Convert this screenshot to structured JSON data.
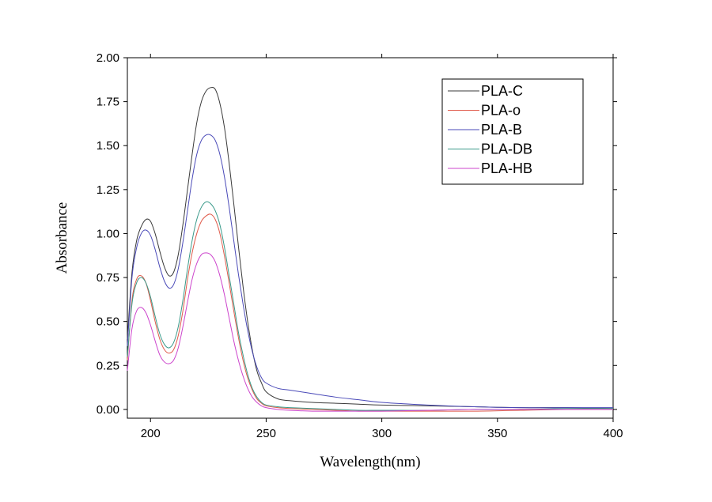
{
  "chart_data": {
    "type": "line",
    "xlabel": "Wavelength(nm)",
    "ylabel": "Absorbance",
    "xlim": [
      190,
      400
    ],
    "ylim": [
      -0.05,
      2.0
    ],
    "xticks": [
      200,
      250,
      300,
      350,
      400
    ],
    "xtick_labels": [
      "200",
      "250",
      "300",
      "350",
      "400"
    ],
    "yticks": [
      0.0,
      0.25,
      0.5,
      0.75,
      1.0,
      1.25,
      1.5,
      1.75,
      2.0
    ],
    "ytick_labels": [
      "0.00",
      "0.25",
      "0.50",
      "0.75",
      "1.00",
      "1.25",
      "1.50",
      "1.75",
      "2.00"
    ],
    "grid": false,
    "legend_position": "top-right",
    "series": [
      {
        "name": "PLA-C",
        "color": "#3a3a3a",
        "x": [
          190,
          192,
          194,
          196,
          198,
          200,
          202,
          204,
          206,
          208,
          210,
          212,
          214,
          216,
          218,
          220,
          222,
          224,
          226,
          228,
          230,
          232,
          234,
          236,
          238,
          240,
          242,
          244,
          246,
          248,
          250,
          255,
          260,
          270,
          280,
          290,
          300,
          320,
          340,
          360,
          380,
          400
        ],
        "y": [
          0.4,
          0.78,
          0.96,
          1.04,
          1.08,
          1.07,
          1.0,
          0.9,
          0.81,
          0.76,
          0.78,
          0.88,
          1.05,
          1.25,
          1.45,
          1.63,
          1.75,
          1.81,
          1.83,
          1.82,
          1.74,
          1.6,
          1.4,
          1.17,
          0.93,
          0.7,
          0.5,
          0.34,
          0.22,
          0.15,
          0.1,
          0.06,
          0.05,
          0.04,
          0.035,
          0.03,
          0.025,
          0.02,
          0.015,
          0.01,
          0.01,
          0.005
        ]
      },
      {
        "name": "PLA-o",
        "color": "#e05a4a",
        "x": [
          190,
          192,
          194,
          196,
          198,
          200,
          202,
          204,
          206,
          208,
          210,
          212,
          214,
          216,
          218,
          220,
          222,
          224,
          226,
          228,
          230,
          232,
          234,
          236,
          238,
          240,
          242,
          244,
          246,
          248,
          250,
          255,
          260,
          270,
          280,
          290,
          300,
          320,
          340,
          360,
          380,
          400
        ],
        "y": [
          0.28,
          0.62,
          0.74,
          0.76,
          0.72,
          0.62,
          0.5,
          0.4,
          0.34,
          0.32,
          0.34,
          0.42,
          0.56,
          0.74,
          0.89,
          1.0,
          1.07,
          1.1,
          1.11,
          1.08,
          1.0,
          0.87,
          0.72,
          0.56,
          0.41,
          0.28,
          0.18,
          0.11,
          0.06,
          0.035,
          0.02,
          0.01,
          0.005,
          0.0,
          -0.005,
          -0.01,
          -0.01,
          -0.01,
          -0.01,
          -0.005,
          0.0,
          0.0
        ]
      },
      {
        "name": "PLA-B",
        "color": "#4a4ab8",
        "x": [
          190,
          192,
          194,
          196,
          198,
          200,
          202,
          204,
          206,
          208,
          210,
          212,
          214,
          216,
          218,
          220,
          222,
          224,
          226,
          228,
          230,
          232,
          234,
          236,
          238,
          240,
          242,
          244,
          246,
          248,
          250,
          255,
          260,
          270,
          280,
          290,
          300,
          320,
          340,
          360,
          380,
          400
        ],
        "y": [
          0.36,
          0.75,
          0.92,
          1.0,
          1.02,
          0.99,
          0.91,
          0.81,
          0.73,
          0.69,
          0.71,
          0.8,
          0.95,
          1.13,
          1.31,
          1.45,
          1.53,
          1.56,
          1.56,
          1.53,
          1.45,
          1.32,
          1.15,
          0.96,
          0.77,
          0.6,
          0.45,
          0.33,
          0.24,
          0.18,
          0.15,
          0.12,
          0.11,
          0.09,
          0.07,
          0.055,
          0.04,
          0.025,
          0.015,
          0.01,
          0.01,
          0.01
        ]
      },
      {
        "name": "PLA-DB",
        "color": "#3a9a8a",
        "x": [
          190,
          192,
          194,
          196,
          198,
          200,
          202,
          204,
          206,
          208,
          210,
          212,
          214,
          216,
          218,
          220,
          222,
          224,
          226,
          228,
          230,
          232,
          234,
          236,
          238,
          240,
          242,
          244,
          246,
          248,
          250,
          255,
          260,
          270,
          280,
          290,
          300,
          320,
          340,
          360,
          380,
          400
        ],
        "y": [
          0.3,
          0.6,
          0.72,
          0.75,
          0.72,
          0.64,
          0.53,
          0.43,
          0.37,
          0.35,
          0.38,
          0.47,
          0.62,
          0.8,
          0.96,
          1.08,
          1.15,
          1.18,
          1.17,
          1.13,
          1.05,
          0.92,
          0.76,
          0.6,
          0.44,
          0.31,
          0.2,
          0.12,
          0.07,
          0.04,
          0.025,
          0.015,
          0.01,
          0.005,
          0.0,
          -0.005,
          -0.005,
          -0.005,
          0.0,
          0.0,
          0.005,
          0.005
        ]
      },
      {
        "name": "PLA-HB",
        "color": "#cc44cc",
        "x": [
          190,
          192,
          194,
          196,
          198,
          200,
          202,
          204,
          206,
          208,
          210,
          212,
          214,
          216,
          218,
          220,
          222,
          224,
          226,
          228,
          230,
          232,
          234,
          236,
          238,
          240,
          242,
          244,
          246,
          248,
          250,
          255,
          260,
          270,
          280,
          290,
          300,
          320,
          340,
          360,
          380,
          400
        ],
        "y": [
          0.22,
          0.46,
          0.56,
          0.58,
          0.55,
          0.48,
          0.39,
          0.31,
          0.27,
          0.26,
          0.28,
          0.35,
          0.47,
          0.61,
          0.74,
          0.83,
          0.88,
          0.89,
          0.88,
          0.84,
          0.76,
          0.65,
          0.52,
          0.39,
          0.28,
          0.19,
          0.12,
          0.07,
          0.04,
          0.02,
          0.01,
          0.0,
          -0.005,
          -0.01,
          -0.01,
          -0.01,
          -0.01,
          -0.005,
          0.0,
          0.0,
          0.0,
          0.0
        ]
      }
    ]
  }
}
